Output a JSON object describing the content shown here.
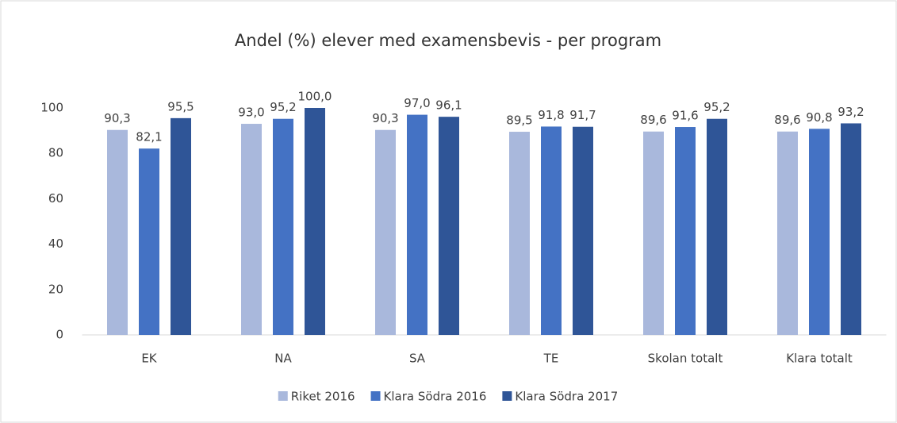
{
  "chart_data": {
    "type": "bar",
    "title": "Andel (%) elever med examensbevis - per program",
    "categories": [
      "EK",
      "NA",
      "SA",
      "TE",
      "Skolan totalt",
      "Klara totalt"
    ],
    "series": [
      {
        "name": "Riket 2016",
        "color": "#a9b8dc",
        "values": [
          90.3,
          93.0,
          90.3,
          89.5,
          89.6,
          89.6
        ],
        "value_labels": [
          "90,3",
          "93,0",
          "90,3",
          "89,5",
          "89,6",
          "89,6"
        ]
      },
      {
        "name": "Klara Södra 2016",
        "color": "#4472c4",
        "values": [
          82.1,
          95.2,
          97.0,
          91.8,
          91.6,
          90.8
        ],
        "value_labels": [
          "82,1",
          "95,2",
          "97,0",
          "91,8",
          "91,6",
          "90,8"
        ]
      },
      {
        "name": "Klara Södra 2017",
        "color": "#2f5597",
        "values": [
          95.5,
          100.0,
          96.1,
          91.7,
          95.2,
          93.2
        ],
        "value_labels": [
          "95,5",
          "100,0",
          "96,1",
          "91,7",
          "95,2",
          "93,2"
        ]
      }
    ],
    "ylim": [
      0,
      100
    ],
    "yticks": [
      0,
      20,
      40,
      60,
      80,
      100
    ],
    "grid": false,
    "legend": "bottom"
  }
}
